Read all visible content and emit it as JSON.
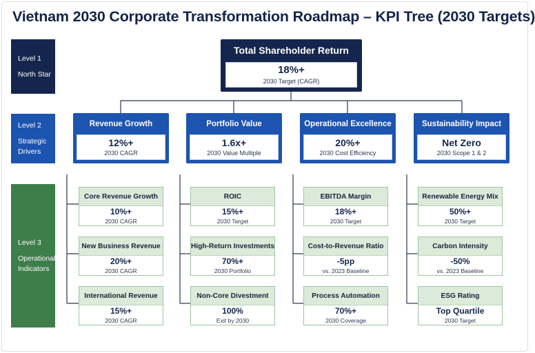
{
  "title": "Vietnam 2030 Corporate Transformation Roadmap – KPI Tree (2030 Targets)",
  "levels": [
    {
      "label": "Level 1",
      "name": "North Star"
    },
    {
      "label": "Level 2",
      "name_line1": "Strategic",
      "name_line2": "Drivers"
    },
    {
      "label": "Level 3",
      "name_line1": "Operational",
      "name_line2": "Indicators"
    }
  ],
  "north_star": {
    "title": "Total Shareholder Return",
    "value": "18%+",
    "note": "2030 Target (CAGR)"
  },
  "drivers": [
    {
      "title": "Revenue Growth",
      "value": "12%+",
      "note": "2030 CAGR",
      "kpis": [
        {
          "title": "Core Revenue Growth",
          "value": "10%+",
          "note": "2030 CAGR"
        },
        {
          "title": "New Business Revenue",
          "value": "20%+",
          "note": "2030 CAGR"
        },
        {
          "title": "International Revenue",
          "value": "15%+",
          "note": "2030 CAGR"
        }
      ]
    },
    {
      "title": "Portfolio Value",
      "value": "1.6x+",
      "note": "2030 Value Multiple",
      "kpis": [
        {
          "title": "ROIC",
          "value": "15%+",
          "note": "2030 Target"
        },
        {
          "title": "High-Return Investments",
          "value": "70%+",
          "note": "2030 Portfolio"
        },
        {
          "title": "Non-Core Divestment",
          "value": "100%",
          "note": "Exit by 2030"
        }
      ]
    },
    {
      "title": "Operational Excellence",
      "value": "20%+",
      "note": "2030 Cost Efficiency",
      "kpis": [
        {
          "title": "EBITDA Margin",
          "value": "18%+",
          "note": "2030 Target"
        },
        {
          "title": "Cost-to-Revenue Ratio",
          "value": "-5pp",
          "note": "vs. 2023 Baseline"
        },
        {
          "title": "Process Automation",
          "value": "70%+",
          "note": "2030 Coverage"
        }
      ]
    },
    {
      "title": "Sustainability Impact",
      "value": "Net Zero",
      "note": "2030 Scope 1 & 2",
      "kpis": [
        {
          "title": "Renewable Energy Mix",
          "value": "50%+",
          "note": "2030 Target"
        },
        {
          "title": "Carbon Intensity",
          "value": "-50%",
          "note": "vs. 2023 Baseline"
        },
        {
          "title": "ESG Rating",
          "value": "Top Quartile",
          "note": "2030 Target"
        }
      ]
    }
  ],
  "colors": {
    "navy": "#14264d",
    "blue": "#1d54b0",
    "green": "#3d7e4a",
    "light_green": "#dcebd9",
    "connector": "#2b3550"
  }
}
